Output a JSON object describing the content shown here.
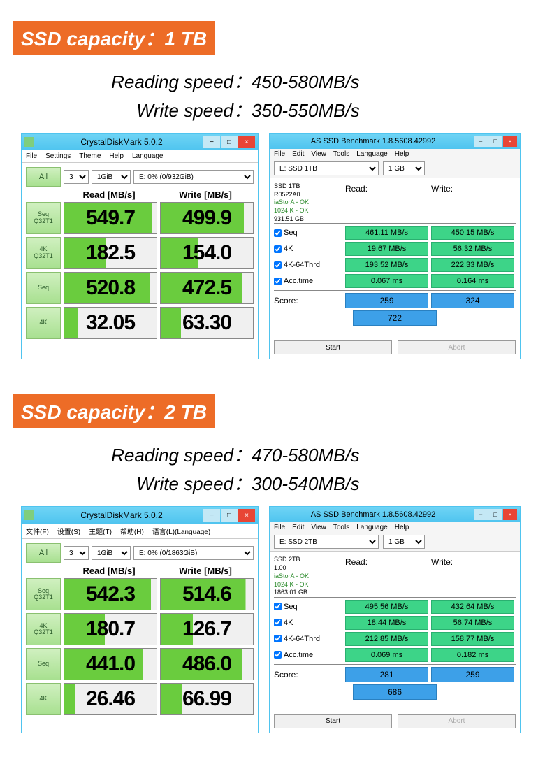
{
  "sections": [
    {
      "badge": "SSD capacity：1 TB",
      "read_speed": "450-580MB/s",
      "write_speed": "350-550MB/s",
      "cdm": {
        "title": "CrystalDiskMark 5.0.2",
        "menu": [
          "File",
          "Settings",
          "Theme",
          "Help",
          "Language"
        ],
        "count_sel": "3",
        "size_sel": "1GiB",
        "drive_sel": "E: 0% (0/932GiB)",
        "all_label": "All",
        "hdr_read": "Read [MB/s]",
        "hdr_write": "Write [MB/s]",
        "rows": [
          {
            "btn1": "Seq",
            "btn2": "Q32T1",
            "read": "549.7",
            "write": "499.9",
            "rfill": 95,
            "wfill": 90
          },
          {
            "btn1": "4K",
            "btn2": "Q32T1",
            "read": "182.5",
            "write": "154.0",
            "rfill": 45,
            "wfill": 40
          },
          {
            "btn1": "Seq",
            "btn2": "",
            "read": "520.8",
            "write": "472.5",
            "rfill": 93,
            "wfill": 88
          },
          {
            "btn1": "4K",
            "btn2": "",
            "read": "32.05",
            "write": "63.30",
            "rfill": 15,
            "wfill": 22
          }
        ]
      },
      "assd": {
        "title": "AS SSD Benchmark 1.8.5608.42992",
        "menu": [
          "File",
          "Edit",
          "View",
          "Tools",
          "Language",
          "Help"
        ],
        "drive_sel": "E: SSD 1TB",
        "size_sel": "1 GB",
        "info": [
          "SSD 1TB",
          "R0522A0",
          "iaStorA - OK",
          "1024 K - OK",
          "931.51 GB"
        ],
        "hdr_read": "Read:",
        "hdr_write": "Write:",
        "rows": [
          {
            "label": "Seq",
            "read": "461.11 MB/s",
            "write": "450.15 MB/s"
          },
          {
            "label": "4K",
            "read": "19.67 MB/s",
            "write": "56.32 MB/s"
          },
          {
            "label": "4K-64Thrd",
            "read": "193.52 MB/s",
            "write": "222.33 MB/s"
          },
          {
            "label": "Acc.time",
            "read": "0.067 ms",
            "write": "0.164 ms"
          }
        ],
        "score_label": "Score:",
        "score_read": "259",
        "score_write": "324",
        "score_total": "722",
        "start_btn": "Start",
        "abort_btn": "Abort"
      }
    },
    {
      "badge": "SSD capacity：2 TB",
      "read_speed": "470-580MB/s",
      "write_speed": "300-540MB/s",
      "cdm": {
        "title": "CrystalDiskMark 5.0.2",
        "menu": [
          "文件(F)",
          "设置(S)",
          "主题(T)",
          "帮助(H)",
          "语言(L)(Language)"
        ],
        "count_sel": "3",
        "size_sel": "1GiB",
        "drive_sel": "E: 0% (0/1863GiB)",
        "all_label": "All",
        "hdr_read": "Read [MB/s]",
        "hdr_write": "Write [MB/s]",
        "rows": [
          {
            "btn1": "Seq",
            "btn2": "Q32T1",
            "read": "542.3",
            "write": "514.6",
            "rfill": 94,
            "wfill": 92
          },
          {
            "btn1": "4K",
            "btn2": "Q32T1",
            "read": "180.7",
            "write": "126.7",
            "rfill": 44,
            "wfill": 35
          },
          {
            "btn1": "Seq",
            "btn2": "",
            "read": "441.0",
            "write": "486.0",
            "rfill": 85,
            "wfill": 88
          },
          {
            "btn1": "4K",
            "btn2": "",
            "read": "26.46",
            "write": "66.99",
            "rfill": 12,
            "wfill": 23
          }
        ]
      },
      "assd": {
        "title": "AS SSD Benchmark 1.8.5608.42992",
        "menu": [
          "File",
          "Edit",
          "View",
          "Tools",
          "Language",
          "Help"
        ],
        "drive_sel": "E: SSD 2TB",
        "size_sel": "1 GB",
        "info": [
          "SSD 2TB",
          "1.00",
          "iaStorA - OK",
          "1024 K - OK",
          "1863.01 GB"
        ],
        "hdr_read": "Read:",
        "hdr_write": "Write:",
        "rows": [
          {
            "label": "Seq",
            "read": "495.56 MB/s",
            "write": "432.64 MB/s"
          },
          {
            "label": "4K",
            "read": "18.44 MB/s",
            "write": "56.74 MB/s"
          },
          {
            "label": "4K-64Thrd",
            "read": "212.85 MB/s",
            "write": "158.77 MB/s"
          },
          {
            "label": "Acc.time",
            "read": "0.069 ms",
            "write": "0.182 ms"
          }
        ],
        "score_label": "Score:",
        "score_read": "281",
        "score_write": "259",
        "score_total": "686",
        "start_btn": "Start",
        "abort_btn": "Abort"
      }
    }
  ],
  "labels": {
    "reading": "Reading speed：",
    "write": "Write speed："
  },
  "colors": {
    "badge_bg": "#ed6c27",
    "win_border": "#4fc4ef",
    "cdm_btn_bg": "#a8e090",
    "cdm_bar": "#6acc3e",
    "assd_green": "#3dd488",
    "assd_blue": "#3da0e8",
    "close_red": "#e84535"
  }
}
